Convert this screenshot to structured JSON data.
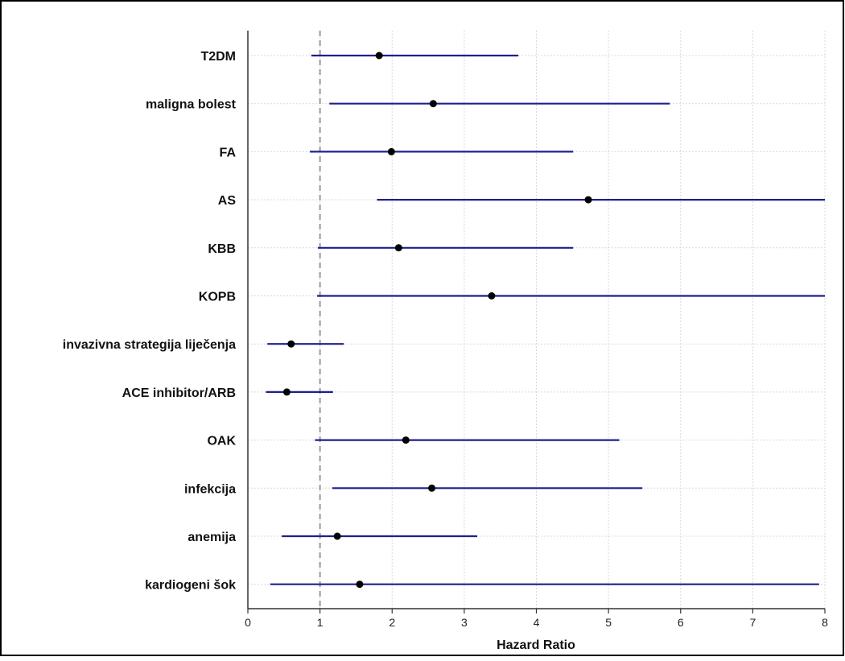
{
  "chart_data": {
    "type": "forest",
    "xlabel": "Hazard Ratio",
    "xlim": [
      0,
      8
    ],
    "x_ticks": [
      0,
      1,
      2,
      3,
      4,
      5,
      6,
      7,
      8
    ],
    "reference_line": 1,
    "grid": true,
    "colors": {
      "ci_line": "#1f1f8f",
      "point": "#000000",
      "reference": "#999999",
      "grid": "#d9d9d9",
      "axis": "#333333"
    },
    "rows": [
      {
        "label": "T2DM",
        "hr": 1.82,
        "lower": 0.88,
        "upper": 3.75
      },
      {
        "label": "maligna bolest",
        "hr": 2.57,
        "lower": 1.13,
        "upper": 5.85
      },
      {
        "label": "FA",
        "hr": 1.99,
        "lower": 0.86,
        "upper": 4.51
      },
      {
        "label": "AS",
        "hr": 4.72,
        "lower": 1.79,
        "upper": 8.0
      },
      {
        "label": "KBB",
        "hr": 2.09,
        "lower": 0.97,
        "upper": 4.51
      },
      {
        "label": "KOPB",
        "hr": 3.38,
        "lower": 0.96,
        "upper": 8.0
      },
      {
        "label": "invazivna strategija liječenja",
        "hr": 0.6,
        "lower": 0.27,
        "upper": 1.33
      },
      {
        "label": "ACE inhibitor/ARB",
        "hr": 0.54,
        "lower": 0.25,
        "upper": 1.18
      },
      {
        "label": "OAK",
        "hr": 2.19,
        "lower": 0.93,
        "upper": 5.15
      },
      {
        "label": "infekcija",
        "hr": 2.55,
        "lower": 1.17,
        "upper": 5.47
      },
      {
        "label": "anemija",
        "hr": 1.24,
        "lower": 0.47,
        "upper": 3.18
      },
      {
        "label": "kardiogeni šok",
        "hr": 1.55,
        "lower": 0.31,
        "upper": 7.92
      }
    ]
  }
}
